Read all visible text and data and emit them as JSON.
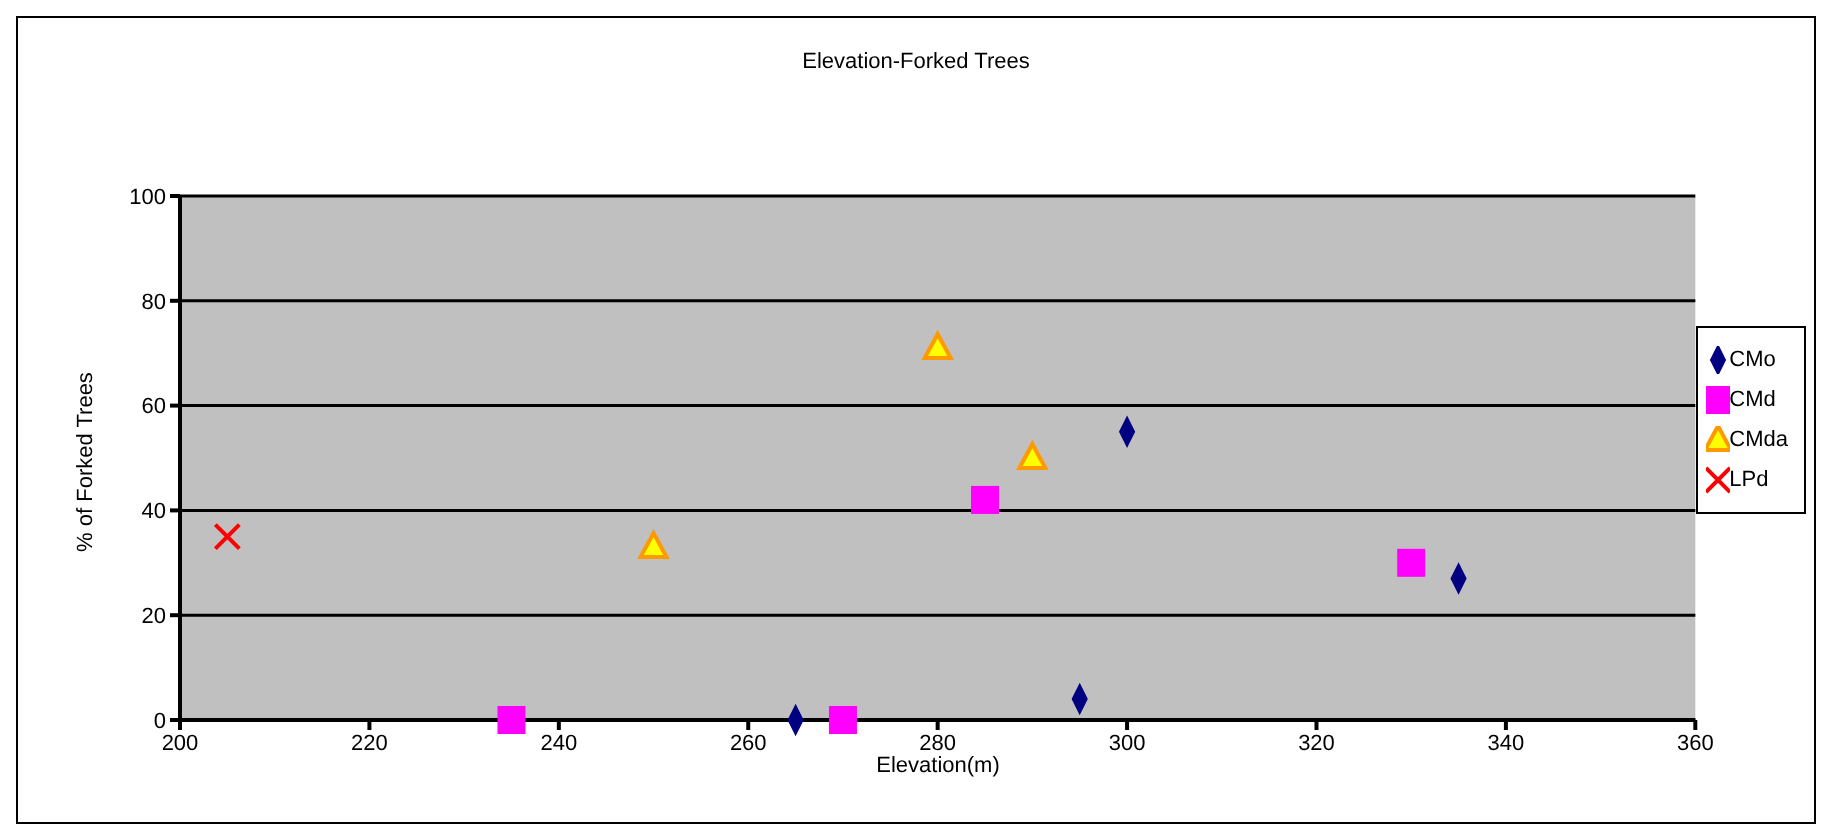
{
  "chart_data": {
    "type": "scatter",
    "title": "Elevation-Forked Trees",
    "xlabel": "Elevation(m)",
    "ylabel": "% of Forked Trees",
    "xlim": [
      200,
      360
    ],
    "xticks": [
      200,
      220,
      240,
      260,
      280,
      300,
      320,
      340,
      360
    ],
    "ylim": [
      0,
      100
    ],
    "yticks": [
      0,
      20,
      40,
      60,
      80,
      100
    ],
    "grid": "y",
    "legend": "right",
    "series": [
      {
        "name": "CMo",
        "color": "#000080",
        "marker": "diamond",
        "x": [
          265,
          290,
          295,
          300,
          335
        ],
        "values": [
          0,
          null,
          4,
          55,
          27
        ]
      },
      {
        "name": "CMd",
        "color": "#ff00ff",
        "marker": "square",
        "x": [
          235,
          270,
          285,
          330
        ],
        "values": [
          0,
          0,
          42,
          30
        ]
      },
      {
        "name": "CMda",
        "color": "#ff9900",
        "marker": "triangle",
        "x": [
          250,
          280,
          290
        ],
        "values": [
          33,
          71,
          50
        ]
      },
      {
        "name": "LPd",
        "color": "#ff0000",
        "marker": "cross",
        "x": [
          205
        ],
        "values": [
          35
        ]
      }
    ]
  }
}
